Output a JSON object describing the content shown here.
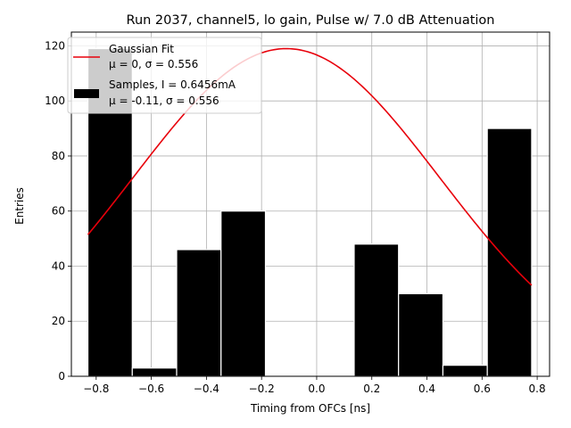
{
  "chart_data": {
    "type": "bar",
    "title": "Run 2037, channel5, lo gain, Pulse w/ 7.0 dB Attenuation",
    "xlabel": "Timing from OFCs [ns]",
    "ylabel": "Entries",
    "xlim": [
      -0.89,
      0.845
    ],
    "ylim": [
      0,
      125
    ],
    "xticks": [
      -0.8,
      -0.6,
      -0.4,
      -0.2,
      0.0,
      0.2,
      0.4,
      0.6,
      0.8
    ],
    "xtick_labels": [
      "−0.8",
      "−0.6",
      "−0.4",
      "−0.2",
      "0.0",
      "0.2",
      "0.4",
      "0.6",
      "0.8"
    ],
    "yticks": [
      0,
      20,
      40,
      60,
      80,
      100,
      120
    ],
    "ytick_labels": [
      "0",
      "20",
      "40",
      "60",
      "80",
      "100",
      "120"
    ],
    "grid": true,
    "histogram": {
      "name": "Samples, I = 0.6456mA",
      "stats": "μ = -0.11, σ = 0.556",
      "color": "#000000",
      "edgecolor": "#ffffff",
      "bin_edges": [
        -0.83,
        -0.669,
        -0.508,
        -0.347,
        -0.186,
        -0.025,
        0.136,
        0.297,
        0.458,
        0.619,
        0.78
      ],
      "counts": [
        119,
        3,
        46,
        60,
        0,
        0,
        48,
        30,
        4,
        90
      ]
    },
    "fit": {
      "name": "Gaussian Fit",
      "stats": "μ = 0, σ = 0.556",
      "color": "#e8000b",
      "x_range": [
        -0.83,
        0.78
      ],
      "mu": -0.11,
      "sigma": 0.556,
      "amplitude": 119
    },
    "legend": {
      "position": "top-left",
      "entries": [
        {
          "line1": "Gaussian Fit",
          "line2": "μ = 0, σ = 0.556"
        },
        {
          "line1": "Samples, I = 0.6456mA",
          "line2": "μ = -0.11, σ = 0.556"
        }
      ]
    }
  }
}
